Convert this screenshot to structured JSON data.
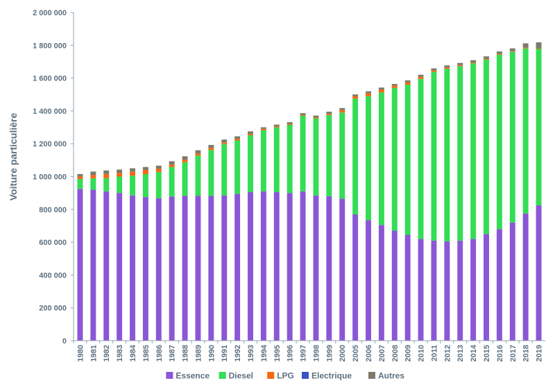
{
  "chart_data": {
    "type": "bar",
    "stacked": true,
    "title": "",
    "xlabel": "",
    "ylabel": "Voiture particulière",
    "ylim": [
      0,
      2000000
    ],
    "yticks": [
      0,
      200000,
      400000,
      600000,
      800000,
      1000000,
      1200000,
      1400000,
      1600000,
      1800000,
      2000000
    ],
    "ytick_labels": [
      "0",
      "200 000",
      "400 000",
      "600 000",
      "800 000",
      "1 000 000",
      "1 200 000",
      "1 400 000",
      "1 600 000",
      "1 800 000",
      "2 000 000"
    ],
    "grid": false,
    "legend_position": "bottom",
    "categories": [
      "1980",
      "1981",
      "1982",
      "1983",
      "1984",
      "1985",
      "1986",
      "1987",
      "1988",
      "1989",
      "1990",
      "1991",
      "1992",
      "1993",
      "1994",
      "1995",
      "1996",
      "1997",
      "1998",
      "1999",
      "2000",
      "2005",
      "2006",
      "2007",
      "2008",
      "2009",
      "2010",
      "2011",
      "2012",
      "2013",
      "2014",
      "2015",
      "2016",
      "2017",
      "2018",
      "2019"
    ],
    "series": [
      {
        "name": "Essence",
        "color": "#8a57d6",
        "values": [
          925000,
          920000,
          910000,
          900000,
          885000,
          875000,
          868000,
          878000,
          883000,
          883000,
          882000,
          885000,
          895000,
          905000,
          910000,
          905000,
          900000,
          910000,
          885000,
          880000,
          865000,
          770000,
          735000,
          705000,
          670000,
          645000,
          620000,
          610000,
          605000,
          610000,
          620000,
          650000,
          680000,
          720000,
          775000,
          825000
        ]
      },
      {
        "name": "Diesel",
        "color": "#33dd55",
        "values": [
          60000,
          70000,
          80000,
          100000,
          120000,
          140000,
          160000,
          180000,
          205000,
          245000,
          280000,
          313000,
          325000,
          347000,
          372000,
          395000,
          415000,
          460000,
          470000,
          495000,
          525000,
          705000,
          755000,
          808000,
          870000,
          915000,
          975000,
          1028000,
          1052000,
          1063000,
          1070000,
          1062000,
          1063000,
          1040000,
          1006000,
          953000
        ]
      },
      {
        "name": "LPG",
        "color": "#f5680f",
        "values": [
          15000,
          20000,
          25000,
          22000,
          25000,
          25000,
          20000,
          15000,
          15000,
          12000,
          12000,
          10000,
          10000,
          8000,
          8000,
          6000,
          6000,
          6000,
          6000,
          8000,
          15000,
          15000,
          16000,
          17000,
          14000,
          13000,
          13000,
          9000,
          8000,
          6000,
          5000,
          5000,
          5000,
          4000,
          4000,
          4000
        ]
      },
      {
        "name": "Electrique",
        "color": "#3a52c8",
        "values": [
          500,
          500,
          500,
          500,
          500,
          500,
          500,
          500,
          500,
          500,
          500,
          500,
          500,
          500,
          500,
          500,
          500,
          500,
          500,
          500,
          500,
          500,
          500,
          500,
          500,
          500,
          500,
          500,
          500,
          500,
          500,
          500,
          500,
          500,
          1000,
          2000
        ]
      },
      {
        "name": "Autres",
        "color": "#7b7b6a",
        "values": [
          15000,
          20000,
          22000,
          20000,
          20000,
          18000,
          18000,
          20000,
          20000,
          20000,
          18000,
          17000,
          15000,
          15000,
          10000,
          10000,
          10000,
          10000,
          10000,
          12000,
          12000,
          10000,
          13000,
          12000,
          10000,
          13000,
          12000,
          12000,
          12000,
          13000,
          14000,
          15000,
          14000,
          17000,
          26000,
          34000
        ]
      }
    ]
  }
}
